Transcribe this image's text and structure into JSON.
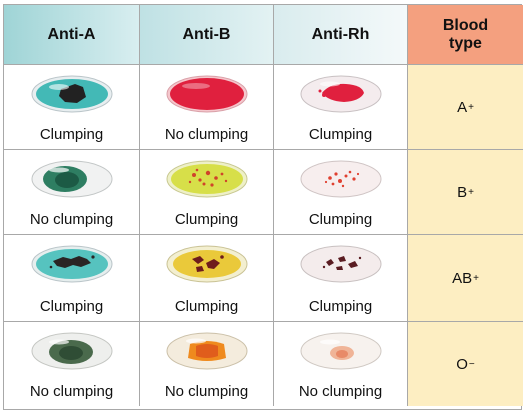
{
  "headers": {
    "anti_a": "Anti-A",
    "anti_b": "Anti-B",
    "anti_rh": "Anti-Rh",
    "blood_type_line1": "Blood",
    "blood_type_line2": "type"
  },
  "rows": [
    {
      "results": [
        "Clumping",
        "No clumping",
        "Clumping"
      ],
      "type_letter": "A",
      "type_sign": "+"
    },
    {
      "results": [
        "No clumping",
        "Clumping",
        "Clumping"
      ],
      "type_letter": "B",
      "type_sign": "+"
    },
    {
      "results": [
        "Clumping",
        "Clumping",
        "Clumping"
      ],
      "type_letter": "AB",
      "type_sign": "+"
    },
    {
      "results": [
        "No clumping",
        "No clumping",
        "No clumping"
      ],
      "type_letter": "O",
      "type_sign": "−"
    }
  ],
  "colors": {
    "anti_a_reagent": "#3fb7b3",
    "anti_b_reagent": "#d8e04a",
    "anti_rh_reagent": "#f3d8d8",
    "clump_dark": "#3b2a2a",
    "blood_red": "#d81f3a",
    "header_blood_type": "#f4a07f",
    "type_column": "#fdeec2"
  }
}
